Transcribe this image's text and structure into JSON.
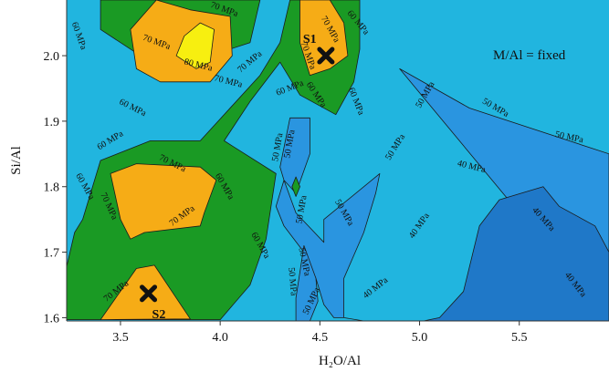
{
  "chart_data": {
    "type": "contour",
    "xlabel": "H₂O/Al",
    "ylabel": "Si/Al",
    "xlim": [
      3.23,
      5.95
    ],
    "ylim": [
      1.595,
      2.085
    ],
    "x_ticks": [
      "3.5",
      "4.0",
      "4.5",
      "5.0",
      "5.5"
    ],
    "x_tick_values": [
      3.5,
      4.0,
      4.5,
      5.0,
      5.5
    ],
    "y_ticks": [
      "1.6",
      "1.7",
      "1.8",
      "1.9",
      "2.0"
    ],
    "y_tick_values": [
      1.6,
      1.7,
      1.8,
      1.9,
      2.0
    ],
    "annotation": "M/Al = fixed",
    "levels": [
      {
        "label": "40 MPa",
        "value": 40,
        "color": "#1f78c8"
      },
      {
        "label": "50 MPa",
        "value": 50,
        "color": "#2a95e0"
      },
      {
        "label": "",
        "value": 55,
        "color": "#21b5df"
      },
      {
        "label": "60 MPa",
        "value": 60,
        "color": "#1a9a24"
      },
      {
        "label": "70 MPa",
        "value": 70,
        "color": "#f6ac16"
      },
      {
        "label": "80 MPa",
        "value": 80,
        "color": "#f7ef10"
      }
    ],
    "regions": [
      {
        "name": "region-50",
        "level": 50,
        "points": [
          [
            4.9,
            1.98
          ],
          [
            5.25,
            1.92
          ],
          [
            5.95,
            1.85
          ],
          [
            5.95,
            1.595
          ],
          [
            4.72,
            1.595
          ],
          [
            4.62,
            1.6
          ],
          [
            4.62,
            1.66
          ],
          [
            4.72,
            1.73
          ],
          [
            4.78,
            1.79
          ],
          [
            4.8,
            1.82
          ],
          [
            4.52,
            1.75
          ],
          [
            4.52,
            1.715
          ],
          [
            4.38,
            1.76
          ],
          [
            4.32,
            1.81
          ],
          [
            4.28,
            1.77
          ],
          [
            4.32,
            1.74
          ],
          [
            4.42,
            1.7
          ],
          [
            4.48,
            1.66
          ],
          [
            4.52,
            1.62
          ],
          [
            4.57,
            1.6
          ],
          [
            4.62,
            1.6
          ],
          [
            4.72,
            1.595
          ],
          [
            5.95,
            1.595
          ]
        ]
      },
      {
        "name": "region-50-island",
        "level": 50,
        "points": [
          [
            4.35,
            1.905
          ],
          [
            4.45,
            1.905
          ],
          [
            4.45,
            1.85
          ],
          [
            4.38,
            1.79
          ],
          [
            4.32,
            1.81
          ],
          [
            4.3,
            1.83
          ]
        ]
      },
      {
        "name": "region-50-island-2",
        "level": 50,
        "points": [
          [
            4.42,
            1.71
          ],
          [
            4.48,
            1.66
          ],
          [
            4.49,
            1.625
          ],
          [
            4.45,
            1.595
          ],
          [
            4.38,
            1.595
          ],
          [
            4.38,
            1.63
          ]
        ]
      },
      {
        "name": "region-40",
        "level": 40,
        "points": [
          [
            5.22,
            1.64
          ],
          [
            5.3,
            1.74
          ],
          [
            5.4,
            1.78
          ],
          [
            5.62,
            1.8
          ],
          [
            5.7,
            1.77
          ],
          [
            5.88,
            1.74
          ],
          [
            5.95,
            1.7
          ],
          [
            5.95,
            1.595
          ],
          [
            5.02,
            1.595
          ],
          [
            5.1,
            1.6
          ]
        ]
      },
      {
        "name": "region-60",
        "level": 60,
        "points": [
          [
            3.23,
            1.678
          ],
          [
            3.27,
            1.73
          ],
          [
            3.31,
            1.75
          ],
          [
            3.4,
            1.84
          ],
          [
            3.65,
            1.87
          ],
          [
            3.9,
            1.87
          ],
          [
            4.2,
            1.97
          ],
          [
            4.3,
            2.02
          ],
          [
            4.35,
            2.085
          ],
          [
            4.7,
            2.085
          ],
          [
            4.7,
            2.01
          ],
          [
            4.67,
            1.96
          ],
          [
            4.58,
            1.91
          ],
          [
            4.4,
            1.94
          ],
          [
            4.3,
            1.99
          ],
          [
            4.15,
            1.93
          ],
          [
            4.02,
            1.87
          ],
          [
            4.28,
            1.82
          ],
          [
            4.23,
            1.72
          ],
          [
            4.15,
            1.65
          ],
          [
            4.0,
            1.597
          ],
          [
            3.23,
            1.597
          ]
        ]
      },
      {
        "name": "region-60-top",
        "level": 60,
        "points": [
          [
            3.4,
            2.085
          ],
          [
            4.2,
            2.085
          ],
          [
            4.15,
            2.02
          ],
          [
            3.95,
            2.0
          ],
          [
            3.85,
            1.97
          ],
          [
            3.63,
            1.98
          ],
          [
            3.6,
            2.0
          ],
          [
            3.4,
            2.04
          ]
        ]
      },
      {
        "name": "region-70-topleft",
        "level": 70,
        "points": [
          [
            3.55,
            2.04
          ],
          [
            3.68,
            2.085
          ],
          [
            3.85,
            2.07
          ],
          [
            4.05,
            2.06
          ],
          [
            4.06,
            2.0
          ],
          [
            3.95,
            1.96
          ],
          [
            3.7,
            1.96
          ],
          [
            3.58,
            1.98
          ]
        ]
      },
      {
        "name": "region-70-s1",
        "level": 70,
        "points": [
          [
            4.4,
            2.085
          ],
          [
            4.55,
            2.085
          ],
          [
            4.62,
            2.05
          ],
          [
            4.64,
            2.0
          ],
          [
            4.55,
            1.98
          ],
          [
            4.45,
            1.97
          ],
          [
            4.4,
            2.02
          ]
        ]
      },
      {
        "name": "region-70-mid",
        "level": 70,
        "points": [
          [
            3.45,
            1.82
          ],
          [
            3.58,
            1.835
          ],
          [
            3.9,
            1.83
          ],
          [
            3.98,
            1.81
          ],
          [
            3.92,
            1.76
          ],
          [
            3.9,
            1.74
          ],
          [
            3.62,
            1.73
          ],
          [
            3.55,
            1.72
          ],
          [
            3.5,
            1.75
          ]
        ]
      },
      {
        "name": "region-70-s2",
        "level": 70,
        "points": [
          [
            3.4,
            1.597
          ],
          [
            3.58,
            1.675
          ],
          [
            3.67,
            1.68
          ],
          [
            3.85,
            1.598
          ]
        ]
      },
      {
        "name": "region-80",
        "level": 80,
        "points": [
          [
            3.78,
            2.0
          ],
          [
            3.88,
            1.98
          ],
          [
            3.95,
            1.99
          ],
          [
            3.97,
            2.04
          ],
          [
            3.9,
            2.05
          ],
          [
            3.82,
            2.03
          ]
        ]
      },
      {
        "name": "region-60-diamond",
        "level": 60,
        "points": [
          [
            4.38,
            1.815
          ],
          [
            4.4,
            1.8
          ],
          [
            4.38,
            1.785
          ],
          [
            4.36,
            1.8
          ]
        ]
      }
    ],
    "contour_labels": [
      {
        "text": "70 MPa",
        "x": 4.02,
        "y": 2.07,
        "rotate": 20
      },
      {
        "text": "70 MPa",
        "x": 3.68,
        "y": 2.02,
        "rotate": 20
      },
      {
        "text": "80 MPa",
        "x": 3.89,
        "y": 1.985,
        "rotate": 14
      },
      {
        "text": "70 MPa",
        "x": 4.04,
        "y": 1.96,
        "rotate": 14
      },
      {
        "text": "70 MPa",
        "x": 4.15,
        "y": 1.99,
        "rotate": -40
      },
      {
        "text": "60 MPa",
        "x": 3.29,
        "y": 2.03,
        "rotate": 70
      },
      {
        "text": "60 MPa",
        "x": 3.56,
        "y": 1.92,
        "rotate": 26
      },
      {
        "text": "60 MPa",
        "x": 3.45,
        "y": 1.87,
        "rotate": -32
      },
      {
        "text": "60 MPa",
        "x": 4.35,
        "y": 1.95,
        "rotate": -22
      },
      {
        "text": "70 MPa",
        "x": 4.55,
        "y": 2.04,
        "rotate": 60
      },
      {
        "text": "60 MPa",
        "x": 4.69,
        "y": 2.05,
        "rotate": 50
      },
      {
        "text": "70 MPa",
        "x": 4.44,
        "y": 2.0,
        "rotate": 70
      },
      {
        "text": "60 MPa",
        "x": 4.48,
        "y": 1.94,
        "rotate": 56
      },
      {
        "text": "60 MPa",
        "x": 4.68,
        "y": 1.93,
        "rotate": 68
      },
      {
        "text": "70 MPa",
        "x": 3.76,
        "y": 1.835,
        "rotate": 26
      },
      {
        "text": "60 MPa",
        "x": 3.32,
        "y": 1.8,
        "rotate": 60
      },
      {
        "text": "70 MPa",
        "x": 3.44,
        "y": 1.77,
        "rotate": 65
      },
      {
        "text": "70 MPa",
        "x": 3.81,
        "y": 1.755,
        "rotate": -36
      },
      {
        "text": "60 MPa",
        "x": 4.02,
        "y": 1.8,
        "rotate": 60
      },
      {
        "text": "60 MPa",
        "x": 4.2,
        "y": 1.71,
        "rotate": 60
      },
      {
        "text": "70 MPa",
        "x": 3.48,
        "y": 1.64,
        "rotate": -38
      },
      {
        "text": "50 MPa",
        "x": 4.29,
        "y": 1.86,
        "rotate": -80
      },
      {
        "text": "50 MPa",
        "x": 4.35,
        "y": 1.865,
        "rotate": -80
      },
      {
        "text": "50 MPa",
        "x": 4.41,
        "y": 1.765,
        "rotate": -80
      },
      {
        "text": "50 MPa",
        "x": 4.62,
        "y": 1.76,
        "rotate": 60
      },
      {
        "text": "50 MPa",
        "x": 4.42,
        "y": 1.685,
        "rotate": 78
      },
      {
        "text": "50 MPa",
        "x": 4.36,
        "y": 1.655,
        "rotate": 85
      },
      {
        "text": "50 MPa",
        "x": 4.46,
        "y": 1.625,
        "rotate": -65
      },
      {
        "text": "50 MPa",
        "x": 4.88,
        "y": 1.86,
        "rotate": -58
      },
      {
        "text": "50 MPa",
        "x": 5.03,
        "y": 1.94,
        "rotate": -60
      },
      {
        "text": "50 MPa",
        "x": 5.38,
        "y": 1.92,
        "rotate": 30
      },
      {
        "text": "50 MPa",
        "x": 5.75,
        "y": 1.875,
        "rotate": 12
      },
      {
        "text": "40 MPa",
        "x": 5.26,
        "y": 1.83,
        "rotate": 14
      },
      {
        "text": "40 MPa",
        "x": 5.0,
        "y": 1.74,
        "rotate": -55
      },
      {
        "text": "40 MPa",
        "x": 4.78,
        "y": 1.645,
        "rotate": -38
      },
      {
        "text": "40 MPa",
        "x": 5.62,
        "y": 1.75,
        "rotate": 48
      },
      {
        "text": "40 MPa",
        "x": 5.78,
        "y": 1.65,
        "rotate": 52
      }
    ],
    "markers": [
      {
        "label": "S1",
        "x": 4.53,
        "y": 2.0
      },
      {
        "label": "S2",
        "x": 3.64,
        "y": 1.637
      }
    ]
  }
}
